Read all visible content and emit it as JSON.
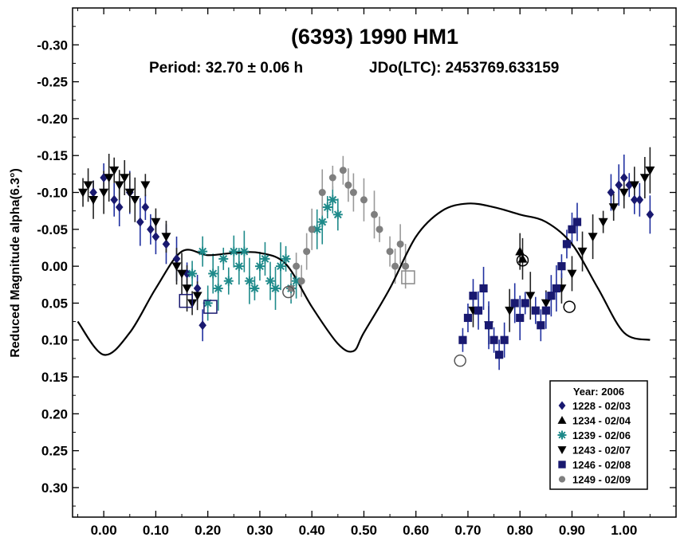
{
  "chart_data": {
    "type": "scatter",
    "title": "(6393) 1990 HM1",
    "subtitle_period": "Period: 32.70 ± 0.06 h",
    "subtitle_epoch": "JDo(LTC): 2453769.633159",
    "xlabel": "",
    "ylabel": "Reduced Magnitude alpha(6.3°)",
    "xlim": [
      -0.06,
      1.1
    ],
    "ylim": [
      -0.35,
      0.34
    ],
    "y_inverted": true,
    "x_ticks": [
      0.0,
      0.1,
      0.2,
      0.3,
      0.4,
      0.5,
      0.6,
      0.7,
      0.8,
      0.9,
      1.0
    ],
    "x_tick_labels": [
      "0.00",
      "0.10",
      "0.20",
      "0.30",
      "0.40",
      "0.50",
      "0.60",
      "0.70",
      "0.80",
      "0.90",
      "1.00"
    ],
    "y_ticks": [
      -0.3,
      -0.25,
      -0.2,
      -0.15,
      -0.1,
      -0.05,
      0.0,
      0.05,
      0.1,
      0.15,
      0.2,
      0.25,
      0.3
    ],
    "y_tick_labels": [
      "-0.30",
      "-0.25",
      "-0.20",
      "-0.15",
      "-0.10",
      "-0.05",
      "0.00",
      "0.05",
      "0.10",
      "0.15",
      "0.20",
      "0.25",
      "0.30"
    ],
    "grid": false,
    "legend_position": "bottom-right",
    "legend_title": "Year: 2006",
    "fit_curve": {
      "x": [
        -0.05,
        0.0,
        0.05,
        0.1,
        0.15,
        0.2,
        0.25,
        0.3,
        0.35,
        0.4,
        0.45,
        0.48,
        0.5,
        0.55,
        0.6,
        0.65,
        0.7,
        0.75,
        0.8,
        0.85,
        0.9,
        0.95,
        1.0,
        1.05
      ],
      "y": [
        0.075,
        0.12,
        0.09,
        0.03,
        -0.02,
        -0.015,
        -0.018,
        -0.018,
        -0.003,
        0.055,
        0.105,
        0.115,
        0.09,
        0.03,
        -0.04,
        -0.075,
        -0.085,
        -0.08,
        -0.07,
        -0.06,
        -0.03,
        0.03,
        0.09,
        0.1
      ]
    },
    "series": [
      {
        "name": "1228 - 02/03",
        "marker": "diamond",
        "color": "#191970",
        "x": [
          -0.02,
          0.0,
          0.02,
          0.03,
          0.05,
          0.07,
          0.08,
          0.09,
          0.1,
          0.12,
          0.14,
          0.16,
          0.18,
          0.19,
          0.975,
          0.99,
          1.0,
          1.01,
          1.02,
          1.03,
          1.05
        ],
        "y": [
          -0.1,
          -0.12,
          -0.09,
          -0.08,
          -0.1,
          -0.06,
          -0.08,
          -0.05,
          -0.04,
          -0.03,
          -0.01,
          0.01,
          0.03,
          0.08,
          -0.1,
          -0.11,
          -0.12,
          -0.11,
          -0.09,
          -0.09,
          -0.07
        ]
      },
      {
        "name": "1234 - 02/04",
        "marker": "triangle-up",
        "color": "#000000",
        "x": [
          0.8,
          0.805
        ],
        "y": [
          -0.02,
          -0.01
        ]
      },
      {
        "name": "1239 - 02/06",
        "marker": "asterisk",
        "color": "#1e8a8a",
        "x": [
          0.17,
          0.19,
          0.2,
          0.21,
          0.22,
          0.23,
          0.24,
          0.25,
          0.26,
          0.27,
          0.28,
          0.29,
          0.3,
          0.31,
          0.32,
          0.33,
          0.34,
          0.35,
          0.36,
          0.37,
          0.41,
          0.42,
          0.43,
          0.44,
          0.45
        ],
        "y": [
          0.01,
          -0.02,
          0.05,
          0.01,
          0.03,
          -0.01,
          0.02,
          -0.02,
          0.0,
          -0.02,
          0.02,
          0.03,
          0.0,
          -0.01,
          0.02,
          0.03,
          0.0,
          -0.01,
          0.03,
          0.02,
          -0.05,
          -0.06,
          -0.08,
          -0.09,
          -0.07
        ]
      },
      {
        "name": "1243 - 02/07",
        "marker": "triangle-down",
        "color": "#000000",
        "x": [
          -0.04,
          -0.03,
          -0.02,
          0.0,
          0.01,
          0.02,
          0.03,
          0.04,
          0.05,
          0.06,
          0.08,
          0.1,
          0.12,
          0.14,
          0.15,
          0.16,
          0.17,
          0.18,
          0.71,
          0.74,
          0.78,
          0.82,
          0.85,
          0.88,
          0.9,
          0.92,
          0.94,
          0.96,
          0.98,
          1.0,
          1.02,
          1.04,
          1.05
        ],
        "y": [
          -0.1,
          -0.11,
          -0.09,
          -0.1,
          -0.12,
          -0.13,
          -0.11,
          -0.12,
          -0.1,
          -0.09,
          -0.11,
          -0.06,
          -0.04,
          0.0,
          0.01,
          0.03,
          0.05,
          0.04,
          0.06,
          0.08,
          0.06,
          0.04,
          0.05,
          0.03,
          0.01,
          -0.02,
          -0.04,
          -0.06,
          -0.08,
          -0.1,
          -0.11,
          -0.12,
          -0.13
        ]
      },
      {
        "name": "1246 - 02/08",
        "marker": "square",
        "color": "#191970",
        "x": [
          0.69,
          0.7,
          0.71,
          0.72,
          0.73,
          0.74,
          0.75,
          0.76,
          0.77,
          0.79,
          0.8,
          0.81,
          0.83,
          0.84,
          0.85,
          0.86,
          0.87,
          0.88,
          0.89,
          0.9,
          0.91
        ],
        "y": [
          0.1,
          0.07,
          0.04,
          0.06,
          0.03,
          0.08,
          0.1,
          0.12,
          0.1,
          0.05,
          0.07,
          0.05,
          0.06,
          0.08,
          0.06,
          0.04,
          0.03,
          0.0,
          -0.03,
          -0.05,
          -0.06
        ]
      },
      {
        "name": "1249 - 02/09",
        "marker": "circle",
        "color": "#7f7f7f",
        "x": [
          0.36,
          0.37,
          0.38,
          0.39,
          0.4,
          0.42,
          0.44,
          0.46,
          0.47,
          0.48,
          0.5,
          0.52,
          0.53,
          0.55,
          0.56,
          0.57,
          0.58
        ],
        "y": [
          0.03,
          0.0,
          0.02,
          -0.02,
          -0.05,
          -0.1,
          -0.12,
          -0.13,
          -0.11,
          -0.1,
          -0.09,
          -0.07,
          -0.05,
          -0.02,
          0.0,
          -0.03,
          0.0
        ]
      }
    ],
    "open_markers": [
      {
        "shape": "circle",
        "x": 0.355,
        "y": 0.035
      },
      {
        "shape": "circle",
        "x": 0.685,
        "y": 0.128
      },
      {
        "shape": "circle",
        "x": 0.805,
        "y": -0.008
      },
      {
        "shape": "circle",
        "x": 0.895,
        "y": 0.055
      },
      {
        "shape": "square",
        "x": 0.205,
        "y": 0.055
      },
      {
        "shape": "square",
        "x": 0.585,
        "y": 0.015
      },
      {
        "shape": "square",
        "x": 0.158,
        "y": 0.047
      }
    ]
  }
}
